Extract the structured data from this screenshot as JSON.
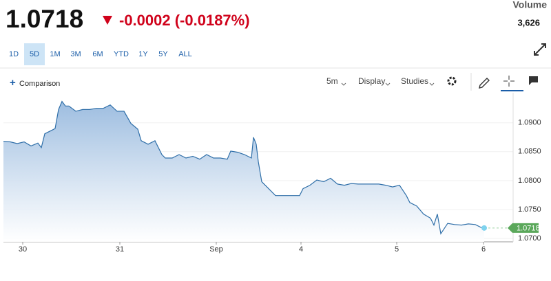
{
  "header": {
    "price": "1.0718",
    "change": "-0.0002 (-0.0187%)",
    "volume_label": "Volume",
    "volume": "3,626"
  },
  "ranges": [
    "1D",
    "5D",
    "1M",
    "3M",
    "6M",
    "YTD",
    "1Y",
    "5Y",
    "ALL"
  ],
  "selected_range": 1,
  "toolbar": {
    "comparison": "Comparison",
    "interval": "5m",
    "display": "Display",
    "studies": "Studies"
  },
  "chart_data": {
    "type": "area",
    "color": "#2e6ea8",
    "grid": true,
    "x": [
      0,
      10,
      20,
      30,
      40,
      50,
      55,
      60,
      70,
      75,
      80,
      85,
      90,
      95,
      105,
      115,
      125,
      135,
      145,
      155,
      165,
      175,
      185,
      195,
      200,
      210,
      220,
      230,
      235,
      245,
      255,
      265,
      275,
      285,
      295,
      305,
      315,
      325,
      330,
      340,
      350,
      360,
      363,
      367,
      370,
      375,
      385,
      395,
      405,
      415,
      430,
      435,
      445,
      455,
      465,
      475,
      485,
      495,
      505,
      515,
      525,
      535,
      545,
      555,
      565,
      575,
      585,
      590,
      600,
      610,
      620,
      625,
      630,
      635,
      645,
      655,
      665,
      675,
      685,
      695,
      698
    ],
    "values": [
      1.0868,
      1.0867,
      1.0864,
      1.0867,
      1.086,
      1.0865,
      1.0857,
      1.0881,
      1.0887,
      1.089,
      1.0923,
      1.0937,
      1.0929,
      1.0929,
      1.092,
      1.0923,
      1.0923,
      1.0925,
      1.0925,
      1.0931,
      1.092,
      1.092,
      1.0899,
      1.0889,
      1.0869,
      1.0863,
      1.0869,
      1.0845,
      1.0839,
      1.0839,
      1.0845,
      1.0839,
      1.0842,
      1.0837,
      1.0845,
      1.0839,
      1.0839,
      1.0837,
      1.0851,
      1.0849,
      1.0845,
      1.0839,
      1.0875,
      1.0863,
      1.0833,
      1.0798,
      1.0786,
      1.0774,
      1.0774,
      1.0774,
      1.0774,
      1.0786,
      1.0792,
      1.0801,
      1.0798,
      1.0804,
      1.0794,
      1.0792,
      1.0795,
      1.0794,
      1.0794,
      1.0794,
      1.0794,
      1.0792,
      1.0789,
      1.0792,
      1.0774,
      1.0762,
      1.0756,
      1.0742,
      1.0735,
      1.0723,
      1.0742,
      1.0708,
      1.0726,
      1.0724,
      1.0723,
      1.0725,
      1.0724,
      1.0718,
      1.0718
    ],
    "xlim": [
      0,
      740
    ],
    "xticks": [
      {
        "value": 28,
        "label": "30"
      },
      {
        "value": 169,
        "label": "31"
      },
      {
        "value": 309,
        "label": "Sep"
      },
      {
        "value": 432,
        "label": "4"
      },
      {
        "value": 571,
        "label": "5"
      },
      {
        "value": 697,
        "label": "6"
      }
    ],
    "ylim": [
      1.0694,
      1.0952
    ],
    "yticks": [
      {
        "value": 1.07,
        "label": "1.0700"
      },
      {
        "value": 1.075,
        "label": "1.0750"
      },
      {
        "value": 1.08,
        "label": "1.0800"
      },
      {
        "value": 1.085,
        "label": "1.0850"
      },
      {
        "value": 1.09,
        "label": "1.0900"
      }
    ]
  }
}
